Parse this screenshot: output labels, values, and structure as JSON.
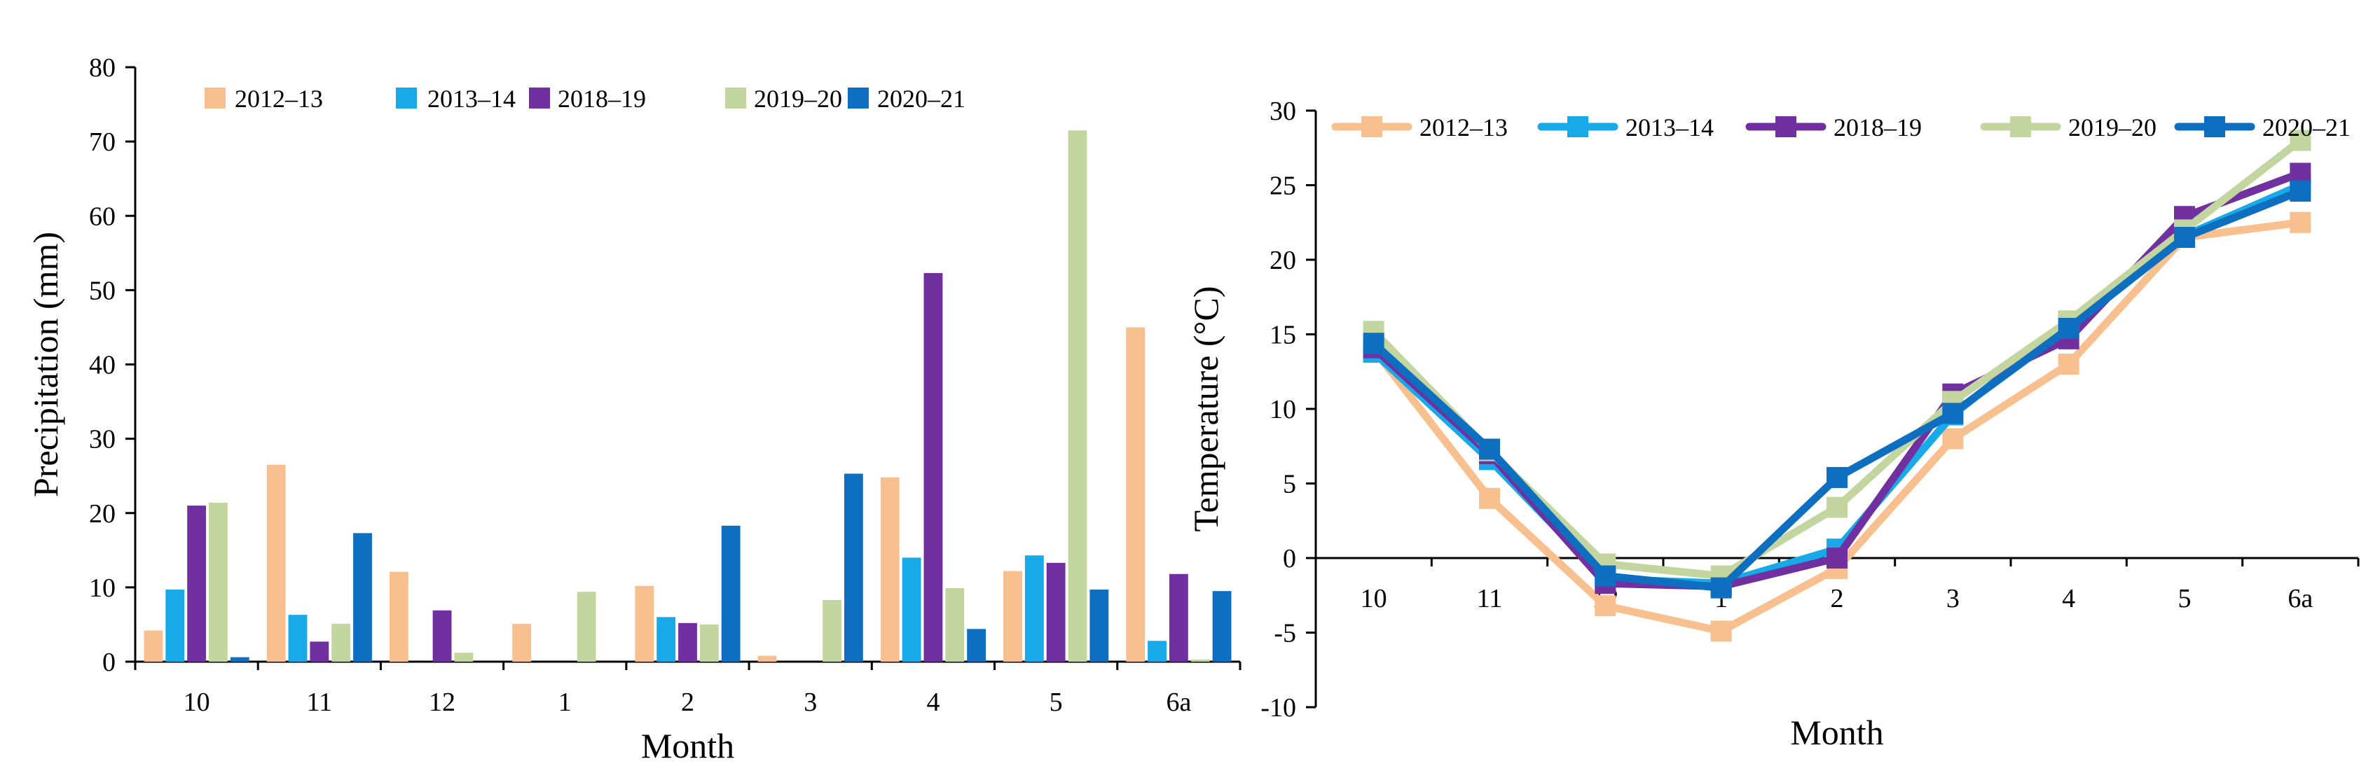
{
  "chart_data": [
    {
      "type": "bar",
      "title": "",
      "xlabel": "Month",
      "ylabel": "Precipitation (mm)",
      "ylim": [
        0,
        80
      ],
      "yticks": [
        "0",
        "10",
        "20",
        "30",
        "40",
        "50",
        "60",
        "70",
        "80"
      ],
      "categories": [
        "10",
        "11",
        "12",
        "1",
        "2",
        "3",
        "4",
        "5",
        "6a"
      ],
      "legend_position": "top",
      "series": [
        {
          "name": "2012–13",
          "color": "#F8C08E",
          "values": [
            4.2,
            26.5,
            12.1,
            5.1,
            10.2,
            0.8,
            24.8,
            12.2,
            45.0
          ]
        },
        {
          "name": "2013–14",
          "color": "#17A9E8",
          "values": [
            9.7,
            6.3,
            0,
            0,
            6.0,
            0,
            14.0,
            14.3,
            2.8
          ]
        },
        {
          "name": "2018–19",
          "color": "#7030A0",
          "values": [
            21.0,
            2.7,
            6.9,
            0,
            5.2,
            0,
            52.3,
            13.3,
            11.8
          ]
        },
        {
          "name": "2019–20",
          "color": "#C4D6A0",
          "values": [
            21.4,
            5.1,
            1.2,
            9.4,
            5.0,
            8.3,
            9.9,
            71.5,
            0.3
          ]
        },
        {
          "name": "2020–21",
          "color": "#0E6FC1",
          "values": [
            0.6,
            17.3,
            0,
            0,
            18.3,
            25.3,
            4.4,
            9.7,
            9.5
          ]
        }
      ]
    },
    {
      "type": "line",
      "title": "",
      "xlabel": "Month",
      "ylabel": "Temperature (°C)",
      "ylim": [
        -10,
        30
      ],
      "yticks": [
        "-10",
        "-5",
        "0",
        "5",
        "10",
        "15",
        "20",
        "25",
        "30"
      ],
      "categories": [
        "10",
        "11",
        "12",
        "1",
        "2",
        "3",
        "4",
        "5",
        "6a"
      ],
      "legend_position": "top",
      "series": [
        {
          "name": "2012–13",
          "color": "#F8C08E",
          "values": [
            14.0,
            4.0,
            -3.2,
            -4.9,
            -0.7,
            8.0,
            13.0,
            21.5,
            22.5
          ]
        },
        {
          "name": "2013–14",
          "color": "#17A9E8",
          "values": [
            13.8,
            6.6,
            -1.4,
            -1.7,
            0.6,
            9.6,
            15.8,
            21.6,
            25.0
          ]
        },
        {
          "name": "2018–19",
          "color": "#7030A0",
          "values": [
            14.1,
            7.0,
            -1.7,
            -1.9,
            0.0,
            11.0,
            14.7,
            22.9,
            25.8
          ]
        },
        {
          "name": "2019–20",
          "color": "#C4D6A0",
          "values": [
            15.2,
            7.2,
            -0.4,
            -1.2,
            3.4,
            10.5,
            15.9,
            22.0,
            28.0
          ]
        },
        {
          "name": "2020–21",
          "color": "#0E6FC1",
          "values": [
            14.4,
            7.3,
            -1.2,
            -2.0,
            5.4,
            9.7,
            15.4,
            21.5,
            24.6
          ]
        }
      ]
    }
  ]
}
